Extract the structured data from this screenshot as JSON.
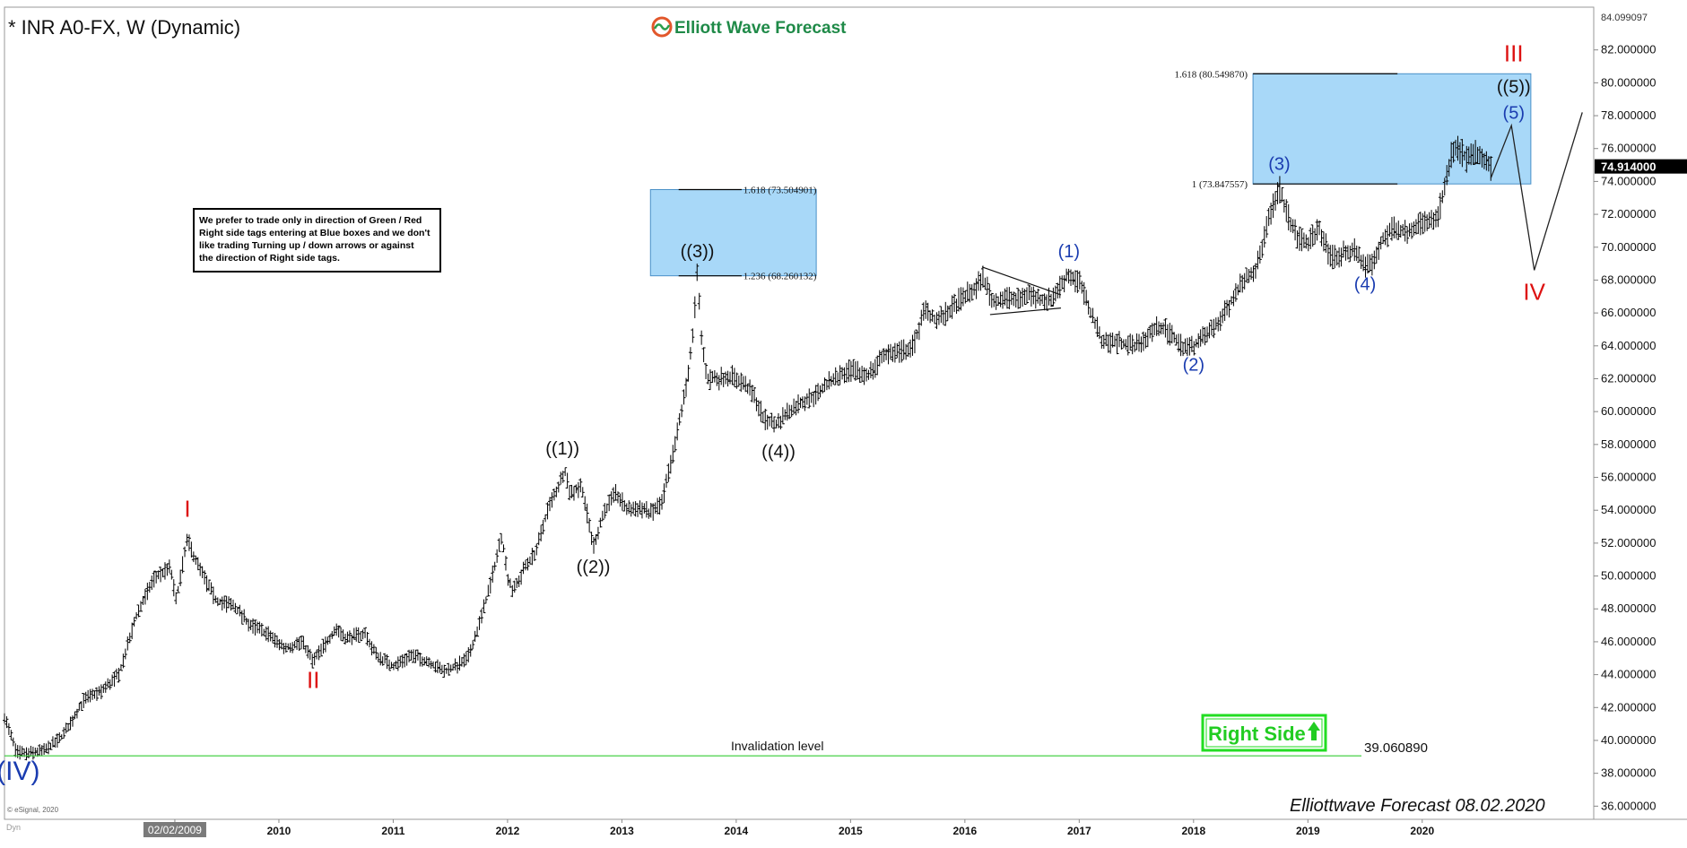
{
  "header": {
    "symbol_title": "* INR A0-FX, W (Dynamic)",
    "brand_name": "Elliott Wave Forecast"
  },
  "note_box": {
    "lines": [
      "We prefer to trade only in direction of Green / Red",
      "Right side tags entering at Blue boxes and we don't",
      "like trading Turning up / down arrows or against",
      "the direction of Right side tags."
    ]
  },
  "right_side_tag": {
    "label": "Right Side",
    "color": "#22dd22"
  },
  "footer": {
    "signature": "Elliottwave Forecast  08.02.2020",
    "copyright": "© eSignal, 2020",
    "dyn_label": "Dyn"
  },
  "colors": {
    "price_bars": "#000000",
    "blue_box": "#a8d8f8",
    "invalidation_line": "#33cc33",
    "red_labels": "#dd1111",
    "blue_labels": "#1a3cb0",
    "black_labels": "#111111"
  },
  "chart_data": {
    "type": "ohlc",
    "title": "* INR A0-FX, W (Dynamic)",
    "ylim": [
      35.2,
      84.6
    ],
    "y_tick_start": 36,
    "y_tick_step": 2,
    "y_tick_end": 82,
    "y_tick_decimals": 6,
    "price_top_label": "84.099097",
    "current_price_label": "74.914000",
    "current_price": 74.914,
    "x_tick_labels": [
      {
        "label": "02/02/2009",
        "year": 2009.09,
        "highlight": true
      },
      {
        "label": "2010",
        "year": 2010.0
      },
      {
        "label": "2011",
        "year": 2011.0
      },
      {
        "label": "2012",
        "year": 2012.0
      },
      {
        "label": "2013",
        "year": 2013.0
      },
      {
        "label": "2014",
        "year": 2014.0
      },
      {
        "label": "2015",
        "year": 2015.0
      },
      {
        "label": "2016",
        "year": 2016.0
      },
      {
        "label": "2017",
        "year": 2017.0
      },
      {
        "label": "2018",
        "year": 2018.0
      },
      {
        "label": "2019",
        "year": 2019.0
      },
      {
        "label": "2020",
        "year": 2020.0
      }
    ],
    "price_path": [
      [
        2007.6,
        41.5
      ],
      [
        2007.7,
        39.3
      ],
      [
        2007.8,
        39.2
      ],
      [
        2007.95,
        39.4
      ],
      [
        2008.1,
        40.2
      ],
      [
        2008.3,
        42.5
      ],
      [
        2008.45,
        43.0
      ],
      [
        2008.6,
        44.0
      ],
      [
        2008.75,
        47.5
      ],
      [
        2008.9,
        49.8
      ],
      [
        2009.05,
        50.5
      ],
      [
        2009.1,
        48.5
      ],
      [
        2009.2,
        52.2
      ],
      [
        2009.3,
        50.5
      ],
      [
        2009.45,
        48.5
      ],
      [
        2009.6,
        48.2
      ],
      [
        2009.75,
        47.0
      ],
      [
        2009.9,
        46.5
      ],
      [
        2010.05,
        45.6
      ],
      [
        2010.2,
        46.0
      ],
      [
        2010.3,
        44.8
      ],
      [
        2010.4,
        45.8
      ],
      [
        2010.5,
        46.8
      ],
      [
        2010.6,
        46.2
      ],
      [
        2010.75,
        46.5
      ],
      [
        2010.85,
        45.2
      ],
      [
        2011.0,
        44.5
      ],
      [
        2011.15,
        45.2
      ],
      [
        2011.3,
        44.8
      ],
      [
        2011.45,
        44.2
      ],
      [
        2011.55,
        44.5
      ],
      [
        2011.65,
        45.0
      ],
      [
        2011.75,
        47.0
      ],
      [
        2011.85,
        49.5
      ],
      [
        2011.95,
        52.5
      ],
      [
        2012.0,
        50.0
      ],
      [
        2012.05,
        49.0
      ],
      [
        2012.15,
        50.5
      ],
      [
        2012.25,
        51.5
      ],
      [
        2012.35,
        54.0
      ],
      [
        2012.45,
        55.5
      ],
      [
        2012.5,
        56.5
      ],
      [
        2012.55,
        55.0
      ],
      [
        2012.65,
        55.5
      ],
      [
        2012.75,
        51.8
      ],
      [
        2012.85,
        54.0
      ],
      [
        2012.95,
        55.0
      ],
      [
        2013.05,
        54.0
      ],
      [
        2013.15,
        54.2
      ],
      [
        2013.25,
        53.8
      ],
      [
        2013.35,
        54.5
      ],
      [
        2013.45,
        57.5
      ],
      [
        2013.55,
        61.0
      ],
      [
        2013.62,
        64.5
      ],
      [
        2013.66,
        68.5
      ],
      [
        2013.7,
        64.0
      ],
      [
        2013.75,
        62.0
      ],
      [
        2013.85,
        62.0
      ],
      [
        2013.95,
        62.2
      ],
      [
        2014.05,
        61.8
      ],
      [
        2014.15,
        61.0
      ],
      [
        2014.25,
        59.5
      ],
      [
        2014.35,
        59.2
      ],
      [
        2014.45,
        60.0
      ],
      [
        2014.55,
        60.5
      ],
      [
        2014.7,
        61.0
      ],
      [
        2014.85,
        62.0
      ],
      [
        2015.0,
        62.5
      ],
      [
        2015.15,
        62.2
      ],
      [
        2015.3,
        63.5
      ],
      [
        2015.45,
        63.7
      ],
      [
        2015.55,
        64.0
      ],
      [
        2015.65,
        66.2
      ],
      [
        2015.75,
        65.5
      ],
      [
        2015.85,
        66.0
      ],
      [
        2015.95,
        66.8
      ],
      [
        2016.1,
        67.5
      ],
      [
        2016.15,
        68.3
      ],
      [
        2016.25,
        66.6
      ],
      [
        2016.35,
        67.0
      ],
      [
        2016.45,
        66.7
      ],
      [
        2016.55,
        67.2
      ],
      [
        2016.65,
        66.8
      ],
      [
        2016.75,
        66.8
      ],
      [
        2016.85,
        67.8
      ],
      [
        2016.9,
        68.3
      ],
      [
        2017.0,
        67.9
      ],
      [
        2017.1,
        66.0
      ],
      [
        2017.2,
        64.3
      ],
      [
        2017.35,
        64.2
      ],
      [
        2017.5,
        64.0
      ],
      [
        2017.6,
        64.6
      ],
      [
        2017.7,
        65.2
      ],
      [
        2017.8,
        64.7
      ],
      [
        2017.9,
        64.0
      ],
      [
        2017.98,
        63.9
      ],
      [
        2018.05,
        64.3
      ],
      [
        2018.15,
        64.9
      ],
      [
        2018.25,
        65.7
      ],
      [
        2018.35,
        67.0
      ],
      [
        2018.45,
        68.2
      ],
      [
        2018.55,
        68.7
      ],
      [
        2018.65,
        71.5
      ],
      [
        2018.75,
        73.6
      ],
      [
        2018.82,
        72.0
      ],
      [
        2018.9,
        70.7
      ],
      [
        2019.0,
        70.2
      ],
      [
        2019.1,
        71.2
      ],
      [
        2019.2,
        69.3
      ],
      [
        2019.3,
        69.6
      ],
      [
        2019.4,
        69.8
      ],
      [
        2019.5,
        68.9
      ],
      [
        2019.58,
        69.1
      ],
      [
        2019.65,
        70.4
      ],
      [
        2019.75,
        71.3
      ],
      [
        2019.85,
        70.9
      ],
      [
        2019.95,
        71.4
      ],
      [
        2020.05,
        71.5
      ],
      [
        2020.12,
        71.6
      ],
      [
        2020.2,
        73.5
      ],
      [
        2020.25,
        75.6
      ],
      [
        2020.32,
        76.0
      ],
      [
        2020.4,
        75.3
      ],
      [
        2020.48,
        75.8
      ],
      [
        2020.55,
        75.0
      ],
      [
        2020.6,
        74.9
      ]
    ],
    "blue_boxes": [
      {
        "x0": 2013.25,
        "x1": 2014.7,
        "y_low": 68.260132,
        "y_high": 73.504901,
        "levels": [
          {
            "price": 73.504901,
            "label": "1.618 (73.504901)"
          },
          {
            "price": 68.260132,
            "label": "1.236 (68.260132)"
          }
        ]
      },
      {
        "x0": 2018.52,
        "x1": 2020.95,
        "y_low": 73.847557,
        "y_high": 80.54987,
        "levels": [
          {
            "price": 80.54987,
            "label": "1.618 (80.549870)"
          },
          {
            "price": 73.847557,
            "label": "1 (73.847557)"
          }
        ]
      }
    ],
    "invalidation": {
      "price": 39.06089,
      "label": "Invalidation level",
      "value_label": "39.060890"
    },
    "triangle": [
      [
        [
          2016.15,
          68.8
        ],
        [
          2016.84,
          67.1
        ]
      ],
      [
        [
          2016.22,
          65.9
        ],
        [
          2016.84,
          66.3
        ]
      ]
    ],
    "projection_path": [
      [
        2020.6,
        74.2
      ],
      [
        2020.78,
        77.4
      ],
      [
        2020.98,
        68.6
      ],
      [
        2021.4,
        78.2
      ]
    ],
    "wave_labels": [
      {
        "text": "(IV)",
        "x": 2007.72,
        "y": 37.6,
        "color": "blue",
        "size": 30
      },
      {
        "text": "I",
        "x": 2009.2,
        "y": 53.6,
        "color": "red",
        "size": 26
      },
      {
        "text": "II",
        "x": 2010.3,
        "y": 43.2,
        "color": "red",
        "size": 26
      },
      {
        "text": "((1))",
        "x": 2012.48,
        "y": 57.4,
        "color": "black",
        "size": 20
      },
      {
        "text": "((2))",
        "x": 2012.75,
        "y": 50.2,
        "color": "black",
        "size": 20
      },
      {
        "text": "((3))",
        "x": 2013.66,
        "y": 69.4,
        "color": "black",
        "size": 20
      },
      {
        "text": "((4))",
        "x": 2014.37,
        "y": 57.2,
        "color": "black",
        "size": 20
      },
      {
        "text": "(1)",
        "x": 2016.91,
        "y": 69.4,
        "color": "blue",
        "size": 20
      },
      {
        "text": "(2)",
        "x": 2018.0,
        "y": 62.5,
        "color": "blue",
        "size": 20
      },
      {
        "text": "(3)",
        "x": 2018.75,
        "y": 74.7,
        "color": "blue",
        "size": 20
      },
      {
        "text": "(4)",
        "x": 2019.5,
        "y": 67.4,
        "color": "blue",
        "size": 20
      },
      {
        "text": "((5))",
        "x": 2020.8,
        "y": 79.4,
        "color": "black",
        "size": 20
      },
      {
        "text": "(5)",
        "x": 2020.8,
        "y": 77.8,
        "color": "blue",
        "size": 20
      },
      {
        "text": "III",
        "x": 2020.8,
        "y": 81.3,
        "color": "red",
        "size": 26
      },
      {
        "text": "IV",
        "x": 2020.98,
        "y": 66.8,
        "color": "red",
        "size": 26
      }
    ]
  }
}
